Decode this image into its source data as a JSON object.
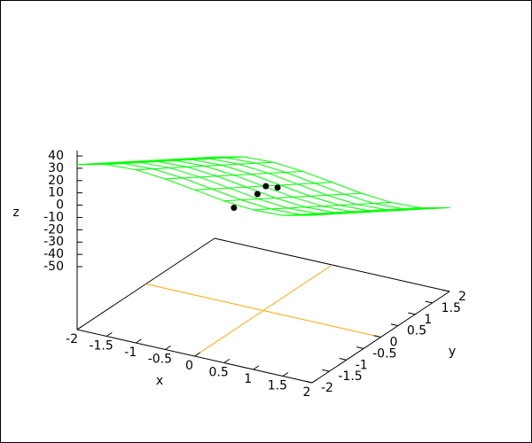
{
  "chart_data": {
    "type": "surface",
    "xlabel": "x",
    "ylabel": "y",
    "zlabel": "z",
    "xlim": [
      -2,
      2
    ],
    "ylim": [
      -2,
      2
    ],
    "zlim": [
      -50,
      40
    ],
    "xticks": [
      -2,
      -1.5,
      -1,
      -0.5,
      0,
      0.5,
      1,
      1.5,
      2
    ],
    "yticks": [
      -2,
      -1.5,
      -1,
      -0.5,
      0,
      0.5,
      1,
      1.5,
      2
    ],
    "zticks": [
      40,
      30,
      20,
      10,
      0,
      -10,
      -20,
      -30,
      -40,
      -50
    ],
    "zeroaxis": true,
    "zeroaxis_color": "#ffa500",
    "surface": {
      "color": "#00ff00",
      "x": [
        -2,
        -1.5,
        -1,
        -0.5,
        0,
        0.5,
        1,
        1.5,
        2
      ],
      "y": [
        -2,
        -1.5,
        -1,
        -0.5,
        0,
        0.5,
        1,
        1.5,
        2
      ],
      "z": [
        [
          33,
          38.5,
          39.5,
          37.5,
          34,
          30.5,
          28.5,
          29.5,
          35
        ],
        [
          24.5,
          30,
          31,
          29,
          25.5,
          22,
          20,
          21,
          26.5
        ],
        [
          16,
          21.5,
          22.5,
          20.5,
          17,
          13.5,
          11.5,
          12.5,
          18
        ],
        [
          7.5,
          13,
          14,
          12,
          8.5,
          5,
          3,
          4,
          9.5
        ],
        [
          -1,
          4.5,
          5.5,
          3.5,
          0,
          -3.5,
          -5.5,
          -4.5,
          1
        ],
        [
          -9.5,
          -4,
          -3,
          -5,
          -8.5,
          -12,
          -14,
          -13,
          -7.5
        ],
        [
          -18,
          -12.5,
          -11.5,
          -13.5,
          -17,
          -20.5,
          -22.5,
          -21.5,
          -16
        ],
        [
          -26.5,
          -21,
          -20,
          -22,
          -25.5,
          -29,
          -31,
          -30,
          -24.5
        ],
        [
          -35,
          -29.5,
          -28.5,
          -30.5,
          -34,
          -37.5,
          -39.5,
          -38.5,
          -33
        ]
      ]
    },
    "points": {
      "color": "#000000",
      "x": [
        -0.5,
        -0.1,
        -0.25,
        -0.05
      ],
      "y": [
        0,
        0,
        0.5,
        0.5
      ],
      "z": [
        -23,
        -7.5,
        -12,
        -11
      ]
    }
  }
}
